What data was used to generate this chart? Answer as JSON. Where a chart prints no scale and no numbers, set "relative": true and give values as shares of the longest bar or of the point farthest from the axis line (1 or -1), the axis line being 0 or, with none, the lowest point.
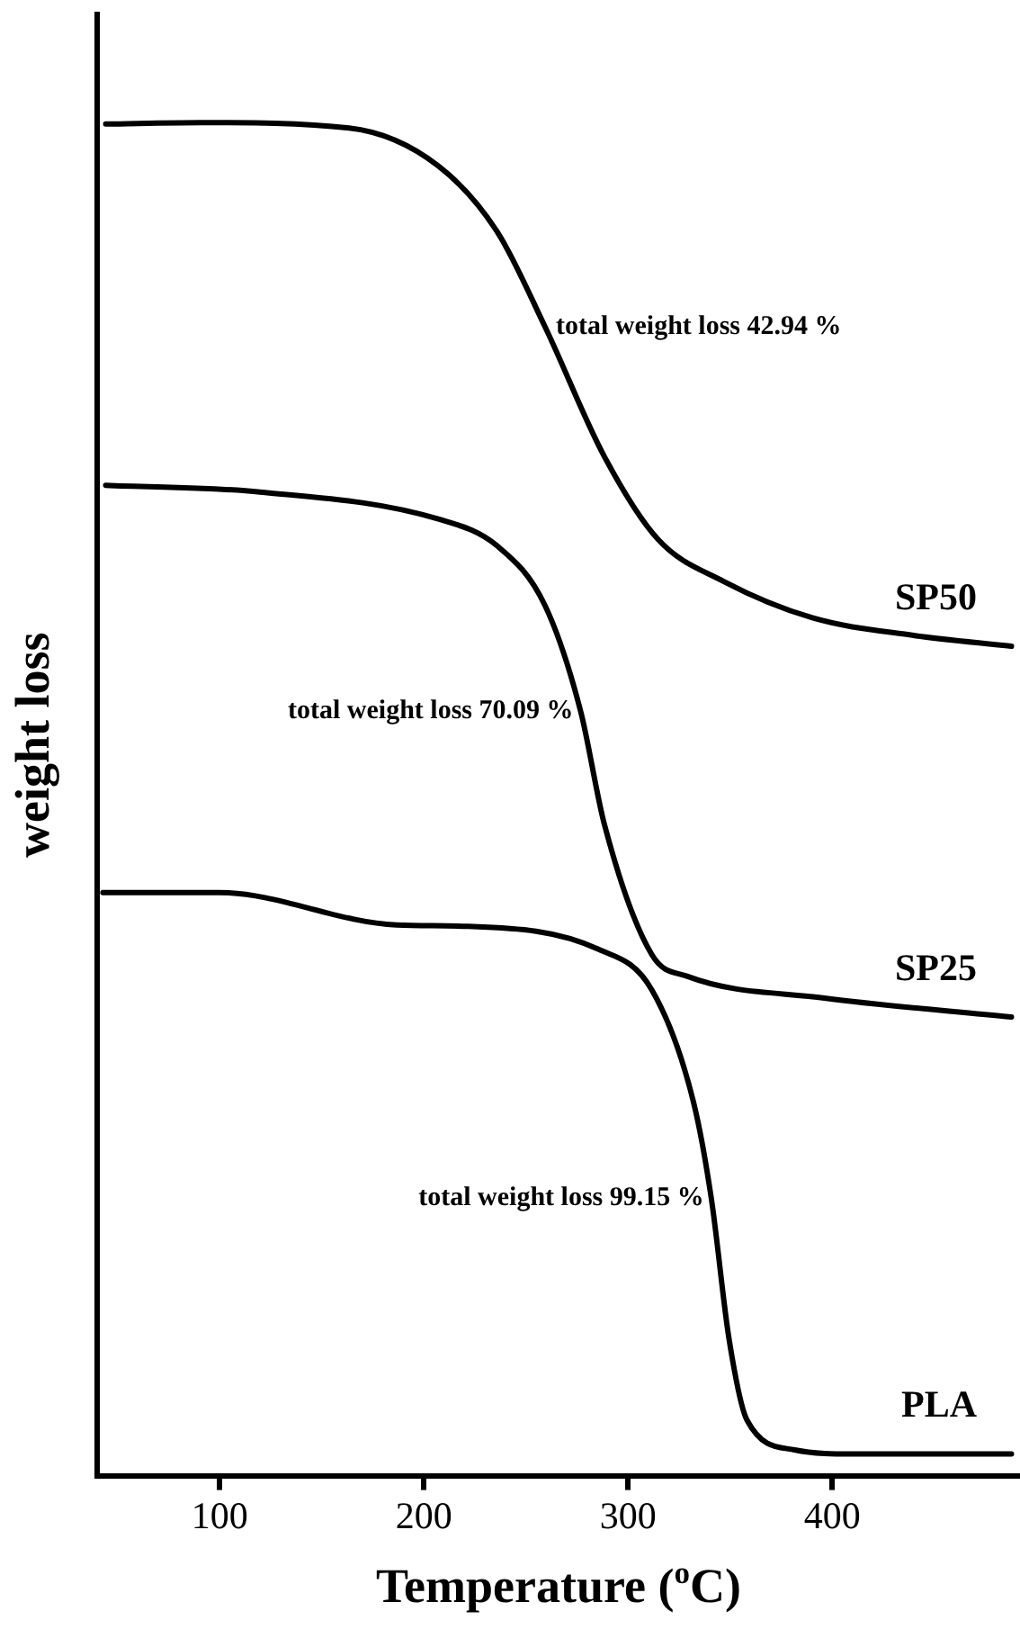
{
  "chart_data": {
    "type": "line",
    "xlabel": "Temperature ($^{o}$C)",
    "ylabel": "weight loss",
    "relative": true,
    "xlim": [
      40,
      492
    ],
    "xticks": [
      100,
      200,
      300,
      400
    ],
    "grid": false,
    "legend": false,
    "marker": "none",
    "line_style": "solid",
    "annotations": [
      {
        "text": "total weight loss 42.94 %",
        "x": 259.4,
        "y": 0.849
      },
      {
        "text": "total weight loss 70.09 %",
        "x": 276.8,
        "y": 0.565
      },
      {
        "text": "total weight loss 99.15 %",
        "x": 340.8,
        "y": 0.205
      }
    ],
    "series": [
      {
        "name": "SP50",
        "color": "#000000",
        "x": [
          44.2,
          90.7,
          163.4,
          207.1,
          236.1,
          259.4,
          288.5,
          314.7,
          346.7,
          390.3,
          439.8,
          487.8
        ],
        "values": [
          0.999,
          1.0,
          0.996,
          0.968,
          0.919,
          0.849,
          0.753,
          0.692,
          0.661,
          0.634,
          0.621,
          0.613
        ]
      },
      {
        "name": "SP25",
        "color": "#000000",
        "x": [
          44.2,
          119.8,
          207.1,
          236.1,
          259.4,
          276.8,
          288.5,
          311.7,
          329.2,
          396.2,
          487.8
        ],
        "values": [
          0.732,
          0.727,
          0.707,
          0.687,
          0.643,
          0.565,
          0.481,
          0.385,
          0.369,
          0.353,
          0.339
        ]
      },
      {
        "name": "PLA",
        "color": "#000000",
        "x": [
          42.8,
          99.5,
          186.7,
          221.6,
          285.6,
          311.7,
          332.1,
          340.8,
          349.6,
          358.3,
          381.6,
          410.6,
          487.8
        ],
        "values": [
          0.431,
          0.431,
          0.407,
          0.406,
          0.389,
          0.359,
          0.276,
          0.205,
          0.1,
          0.041,
          0.019,
          0.016,
          0.016
        ]
      }
    ]
  }
}
